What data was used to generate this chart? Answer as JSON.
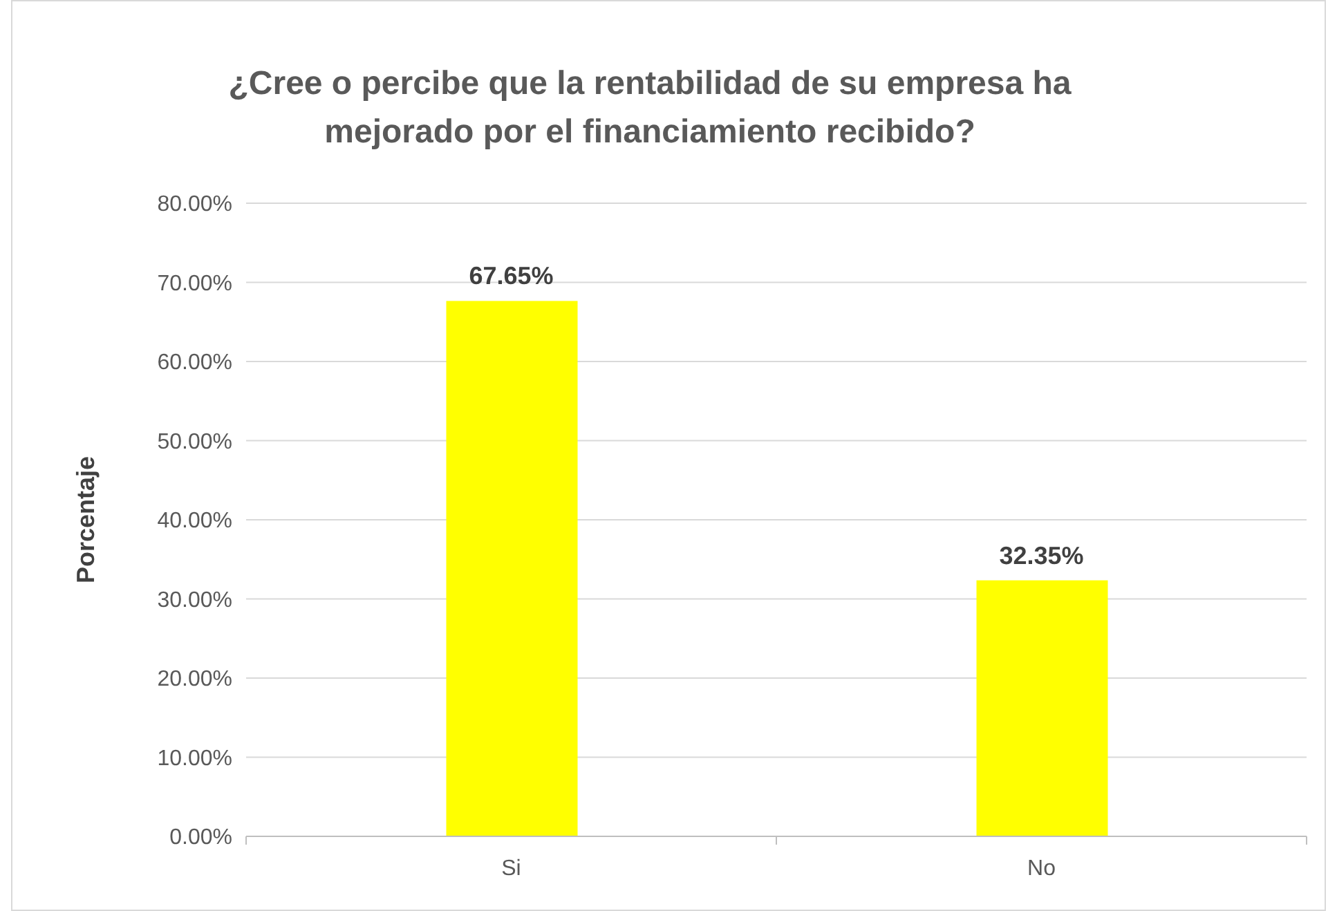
{
  "chart_data": {
    "type": "bar",
    "title": "¿Cree o percibe que la rentabilidad de su empresa ha mejorado por el financiamiento recibido?",
    "ylabel": "Porcentaje",
    "categories": [
      "Si",
      "No"
    ],
    "values": [
      67.65,
      32.35
    ],
    "color": "#ffff00",
    "value_labels": [
      "67.65%",
      "32.35%"
    ],
    "ylim": [
      0,
      80
    ],
    "yticks": [
      {
        "value": 0,
        "label": "0.00%"
      },
      {
        "value": 10,
        "label": "10.00%"
      },
      {
        "value": 20,
        "label": "20.00%"
      },
      {
        "value": 30,
        "label": "30.00%"
      },
      {
        "value": 40,
        "label": "40.00%"
      },
      {
        "value": 50,
        "label": "50.00%"
      },
      {
        "value": 60,
        "label": "60.00%"
      },
      {
        "value": 70,
        "label": "70.00%"
      },
      {
        "value": 80,
        "label": "80.00%"
      }
    ],
    "grid": "y"
  }
}
